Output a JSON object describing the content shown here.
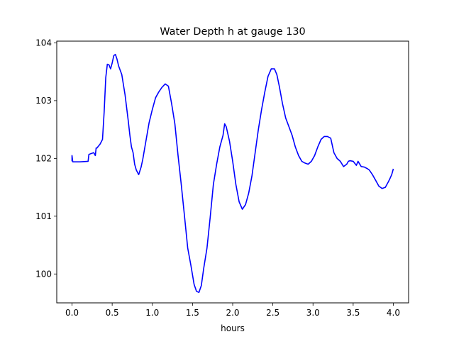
{
  "chart_data": {
    "type": "line",
    "title": "Water Depth h at gauge 130",
    "xlabel": "hours",
    "ylabel": "",
    "xlim": [
      -0.19,
      4.19
    ],
    "ylim": [
      99.5,
      104.03
    ],
    "xticks": [
      0.0,
      0.5,
      1.0,
      1.5,
      2.0,
      2.5,
      3.0,
      3.5,
      4.0
    ],
    "xtick_labels": [
      "0.0",
      "0.5",
      "1.0",
      "1.5",
      "2.0",
      "2.5",
      "3.0",
      "3.5",
      "4.0"
    ],
    "yticks": [
      100,
      101,
      102,
      103,
      104
    ],
    "ytick_labels": [
      "100",
      "101",
      "102",
      "103",
      "104"
    ],
    "grid": false,
    "legend": "none",
    "series": [
      {
        "color": "#0000ff",
        "x": [
          0.0,
          0.0,
          0.01,
          0.03,
          0.1,
          0.2,
          0.21,
          0.27,
          0.29,
          0.3,
          0.31,
          0.35,
          0.38,
          0.4,
          0.42,
          0.44,
          0.46,
          0.48,
          0.5,
          0.52,
          0.54,
          0.56,
          0.58,
          0.62,
          0.66,
          0.7,
          0.72,
          0.74,
          0.76,
          0.78,
          0.8,
          0.83,
          0.86,
          0.88,
          0.92,
          0.96,
          1.0,
          1.04,
          1.08,
          1.12,
          1.16,
          1.2,
          1.24,
          1.28,
          1.32,
          1.36,
          1.4,
          1.44,
          1.48,
          1.52,
          1.55,
          1.58,
          1.61,
          1.64,
          1.68,
          1.72,
          1.76,
          1.8,
          1.84,
          1.88,
          1.9,
          1.92,
          1.96,
          2.0,
          2.04,
          2.08,
          2.12,
          2.16,
          2.2,
          2.24,
          2.28,
          2.32,
          2.36,
          2.4,
          2.44,
          2.48,
          2.52,
          2.55,
          2.58,
          2.62,
          2.66,
          2.7,
          2.74,
          2.78,
          2.82,
          2.86,
          2.9,
          2.94,
          2.98,
          3.02,
          3.06,
          3.1,
          3.14,
          3.18,
          3.22,
          3.26,
          3.3,
          3.34,
          3.38,
          3.42,
          3.44,
          3.46,
          3.5,
          3.54,
          3.56,
          3.6,
          3.64,
          3.68,
          3.7,
          3.74,
          3.78,
          3.82,
          3.86,
          3.9,
          3.94,
          3.96,
          3.98,
          4.0
        ],
        "y": [
          101.95,
          102.05,
          101.94,
          101.94,
          101.94,
          101.95,
          102.07,
          102.1,
          102.05,
          102.18,
          102.18,
          102.25,
          102.33,
          102.8,
          103.4,
          103.63,
          103.62,
          103.55,
          103.65,
          103.78,
          103.8,
          103.72,
          103.6,
          103.45,
          103.1,
          102.65,
          102.4,
          102.2,
          102.1,
          101.9,
          101.8,
          101.72,
          101.85,
          101.98,
          102.3,
          102.62,
          102.85,
          103.05,
          103.15,
          103.23,
          103.29,
          103.25,
          102.95,
          102.6,
          102.05,
          101.55,
          101.0,
          100.45,
          100.15,
          99.82,
          99.7,
          99.68,
          99.8,
          100.1,
          100.45,
          100.98,
          101.55,
          101.9,
          102.2,
          102.4,
          102.6,
          102.55,
          102.3,
          101.95,
          101.55,
          101.25,
          101.12,
          101.2,
          101.4,
          101.7,
          102.1,
          102.5,
          102.85,
          103.15,
          103.42,
          103.55,
          103.55,
          103.45,
          103.25,
          102.95,
          102.7,
          102.55,
          102.4,
          102.2,
          102.05,
          101.95,
          101.92,
          101.9,
          101.95,
          102.05,
          102.2,
          102.33,
          102.38,
          102.38,
          102.35,
          102.1,
          102.0,
          101.95,
          101.86,
          101.9,
          101.95,
          101.96,
          101.95,
          101.88,
          101.95,
          101.86,
          101.85,
          101.82,
          101.8,
          101.72,
          101.62,
          101.52,
          101.48,
          101.5,
          101.6,
          101.66,
          101.72,
          101.82
        ]
      }
    ]
  }
}
